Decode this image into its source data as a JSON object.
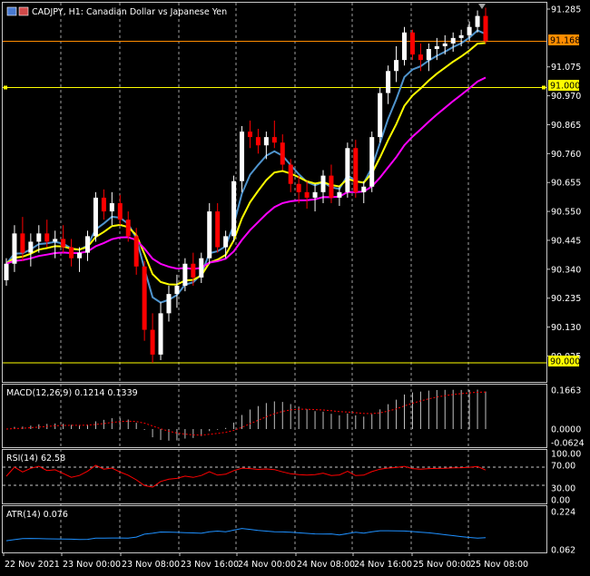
{
  "header": {
    "symbol": "CADJPY",
    "timeframe": "H1",
    "description": "Canadian Dollar vs Japanese Yen",
    "title_text": "CADJPY, H1:  Canadian Dollar vs Japanese Yen"
  },
  "colors": {
    "background": "#000000",
    "grid": "#c8c8c8",
    "bull_candle": "#ffffff",
    "bear_candle": "#ff0000",
    "ma_fast": "#4f94cd",
    "ma_mid": "#ffff00",
    "ma_slow": "#ff00ff",
    "level_line": "#ffff00",
    "current_price_line": "#ff8c00",
    "macd_hist": "#c0c0c0",
    "macd_signal": "#ff0000",
    "rsi_line": "#ff0000",
    "atr_line": "#1e90ff"
  },
  "price_axis": {
    "ticks": [
      "91.285",
      "91.075",
      "90.970",
      "90.865",
      "90.760",
      "90.655",
      "90.550",
      "90.445",
      "90.340",
      "90.235",
      "90.130",
      "90.025"
    ],
    "current_price_tag": "91.168",
    "level_tags": [
      "91.000",
      "90.000"
    ]
  },
  "time_axis": {
    "labels": [
      "22 Nov 2021",
      "23 Nov 00:00",
      "23 Nov 08:00",
      "23 Nov 16:00",
      "24 Nov 00:00",
      "24 Nov 08:00",
      "24 Nov 16:00",
      "25 Nov 00:00",
      "25 Nov 08:00"
    ]
  },
  "indicators": {
    "macd": {
      "label": "MACD(12,26,9) 0.1214 0.1339",
      "ticks": [
        "0.1663",
        "0.0000",
        "-0.0624"
      ]
    },
    "rsi": {
      "label": "RSI(14) 62.58",
      "ticks": [
        "100.00",
        "70.00",
        "30.00",
        "0.00"
      ]
    },
    "atr": {
      "label": "ATR(14) 0.076",
      "ticks": [
        "0.224",
        "0.062"
      ]
    }
  },
  "chart_data": {
    "type": "candlestick",
    "symbol": "CADJPY",
    "timeframe": "H1",
    "ylim": [
      90.0,
      91.3
    ],
    "levels": [
      91.0,
      90.0
    ],
    "current_price": 91.168,
    "candles": [
      [
        90.3,
        90.38,
        90.28,
        90.36
      ],
      [
        90.36,
        90.5,
        90.33,
        90.47
      ],
      [
        90.47,
        90.53,
        90.37,
        90.4
      ],
      [
        90.4,
        90.47,
        90.35,
        90.44
      ],
      [
        90.44,
        90.5,
        90.4,
        90.47
      ],
      [
        90.47,
        90.52,
        90.42,
        90.44
      ],
      [
        90.44,
        90.48,
        90.38,
        90.45
      ],
      [
        90.45,
        90.5,
        90.4,
        90.42
      ],
      [
        90.42,
        90.45,
        90.35,
        90.38
      ],
      [
        90.38,
        90.42,
        90.33,
        90.4
      ],
      [
        90.4,
        90.48,
        90.37,
        90.46
      ],
      [
        90.46,
        90.62,
        90.44,
        90.6
      ],
      [
        90.6,
        90.63,
        90.52,
        90.55
      ],
      [
        90.55,
        90.62,
        90.5,
        90.58
      ],
      [
        90.58,
        90.61,
        90.5,
        90.52
      ],
      [
        90.52,
        90.55,
        90.44,
        90.46
      ],
      [
        90.46,
        90.49,
        90.32,
        90.35
      ],
      [
        90.35,
        90.37,
        90.08,
        90.12
      ],
      [
        90.12,
        90.18,
        90.0,
        90.03
      ],
      [
        90.03,
        90.22,
        90.01,
        90.18
      ],
      [
        90.18,
        90.28,
        90.15,
        90.25
      ],
      [
        90.25,
        90.32,
        90.2,
        90.28
      ],
      [
        90.28,
        90.38,
        90.26,
        90.36
      ],
      [
        90.36,
        90.4,
        90.28,
        90.31
      ],
      [
        90.31,
        90.4,
        90.29,
        90.38
      ],
      [
        90.38,
        90.58,
        90.36,
        90.55
      ],
      [
        90.55,
        90.58,
        90.4,
        90.42
      ],
      [
        90.42,
        90.48,
        90.38,
        90.46
      ],
      [
        90.46,
        90.68,
        90.44,
        90.66
      ],
      [
        90.66,
        90.86,
        90.62,
        90.84
      ],
      [
        90.84,
        90.88,
        90.78,
        90.82
      ],
      [
        90.82,
        90.85,
        90.76,
        90.79
      ],
      [
        90.79,
        90.84,
        90.74,
        90.82
      ],
      [
        90.82,
        90.88,
        90.78,
        90.8
      ],
      [
        90.8,
        90.83,
        90.7,
        90.72
      ],
      [
        90.72,
        90.74,
        90.62,
        90.65
      ],
      [
        90.65,
        90.68,
        90.58,
        90.62
      ],
      [
        90.62,
        90.66,
        90.56,
        90.6
      ],
      [
        90.6,
        90.65,
        90.55,
        90.62
      ],
      [
        90.62,
        90.7,
        90.58,
        90.68
      ],
      [
        90.68,
        90.72,
        90.58,
        90.6
      ],
      [
        90.6,
        90.64,
        90.57,
        90.62
      ],
      [
        90.62,
        90.8,
        90.6,
        90.78
      ],
      [
        90.78,
        90.81,
        90.6,
        90.62
      ],
      [
        90.62,
        90.66,
        90.58,
        90.64
      ],
      [
        90.64,
        90.84,
        90.62,
        90.82
      ],
      [
        90.82,
        91.0,
        90.8,
        90.98
      ],
      [
        90.98,
        91.08,
        90.94,
        91.06
      ],
      [
        91.06,
        91.15,
        91.02,
        91.1
      ],
      [
        91.1,
        91.22,
        91.08,
        91.2
      ],
      [
        91.2,
        91.21,
        91.1,
        91.12
      ],
      [
        91.12,
        91.16,
        91.06,
        91.1
      ],
      [
        91.1,
        91.16,
        91.06,
        91.14
      ],
      [
        91.14,
        91.18,
        91.1,
        91.15
      ],
      [
        91.15,
        91.19,
        91.12,
        91.16
      ],
      [
        91.16,
        91.2,
        91.13,
        91.18
      ],
      [
        91.18,
        91.21,
        91.15,
        91.19
      ],
      [
        91.19,
        91.24,
        91.17,
        91.22
      ],
      [
        91.22,
        91.28,
        91.2,
        91.26
      ],
      [
        91.26,
        91.29,
        91.16,
        91.17
      ]
    ]
  }
}
